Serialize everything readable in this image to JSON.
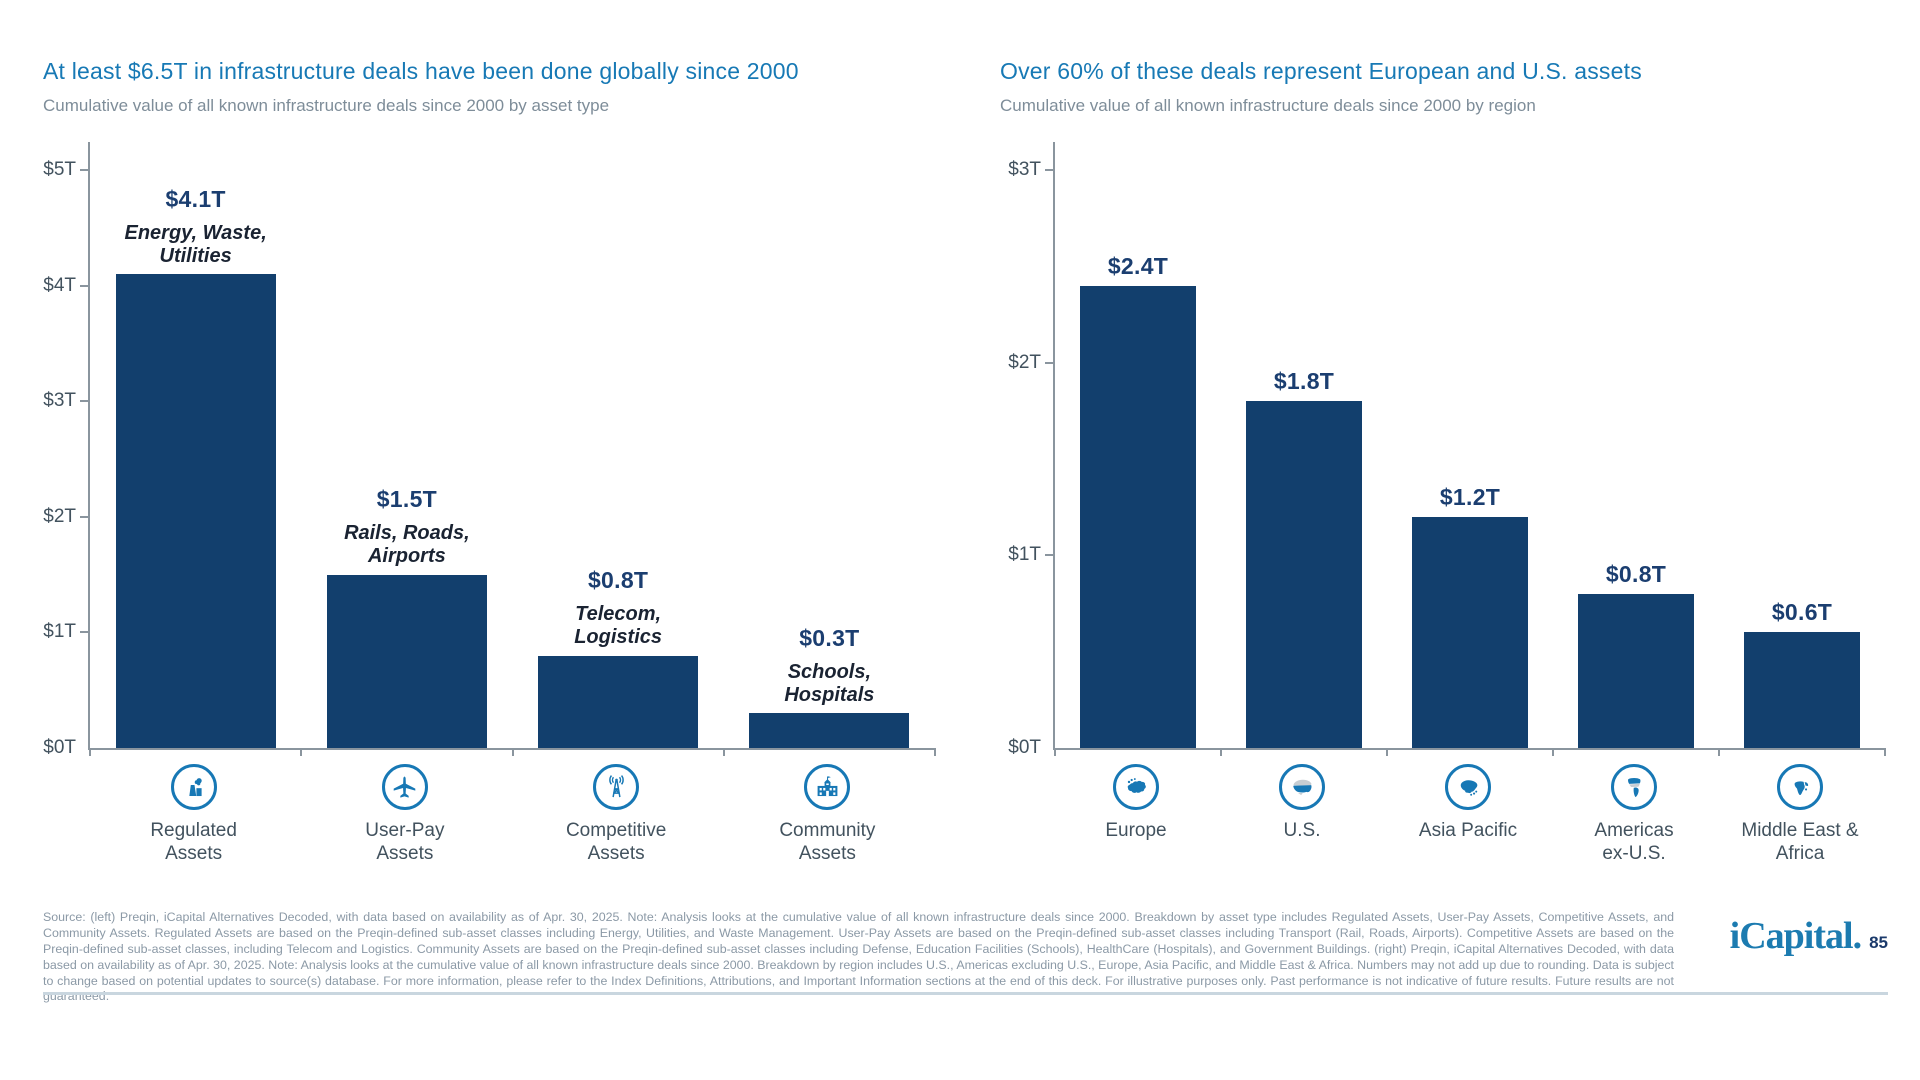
{
  "page": {
    "footer_text": "Source: (left) Preqin, iCapital Alternatives Decoded, with data based on availability as of Apr. 30, 2025. Note: Analysis looks at the cumulative value of all known infrastructure deals since 2000. Breakdown by asset type includes Regulated Assets, User-Pay Assets, Competitive Assets, and Community Assets. Regulated Assets are based on the Preqin-defined sub-asset classes including Energy, Utilities, and Waste Management. User-Pay Assets are based on the Preqin-defined sub-asset classes including Transport (Rail, Roads, Airports). Competitive Assets are based on the Preqin-defined sub-asset classes, including Telecom and Logistics. Community Assets are based on the Preqin-defined sub-asset classes including Defense, Education Facilities (Schools), HealthCare (Hospitals), and Government Buildings. (right) Preqin, iCapital Alternatives Decoded, with data based on availability as of Apr. 30, 2025. Note: Analysis looks at the cumulative value of all known infrastructure deals since 2000. Breakdown by region includes U.S., Americas excluding U.S., Europe, Asia Pacific, and Middle East & Africa. Numbers may not add up due to rounding. Data is subject to change based on potential updates to source(s) database. For more information, please refer to the Index Definitions, Attributions, and Important Information sections at the end of this deck. For illustrative purposes only. Past performance is not indicative of future results. Future results are not guaranteed.",
    "logo_text": "iCapital",
    "logo_dot": ".",
    "page_number": "85"
  },
  "colors": {
    "bar": "#123F6D",
    "title": "#1779B5",
    "value_label": "#1B3E70",
    "description": "#1A2332",
    "axis_text": "#42525E",
    "subtitle": "#7E8D99",
    "footer_text": "#8B99A6",
    "axis_line": "#8A959E",
    "icon": "#1778B5",
    "logo": "#1C7BB0",
    "page_number": "#1B3A6B",
    "divider": "#C9D6DF"
  },
  "chart_data": [
    {
      "type": "bar",
      "title": "At least $6.5T in infrastructure deals have been done globally since 2000",
      "subtitle": "Cumulative value of all known infrastructure deals since 2000 by asset type",
      "categories": [
        "Regulated Assets",
        "User-Pay Assets",
        "Competitive Assets",
        "Community Assets"
      ],
      "category_label_lines": [
        [
          "Regulated",
          "Assets"
        ],
        [
          "User-Pay",
          "Assets"
        ],
        [
          "Competitive",
          "Assets"
        ],
        [
          "Community",
          "Assets"
        ]
      ],
      "values": [
        4.1,
        1.5,
        0.8,
        0.3
      ],
      "value_labels": [
        "$4.1T",
        "$1.5T",
        "$0.8T",
        "$0.3T"
      ],
      "descriptions": [
        [
          "Energy, Waste,",
          "Utilities"
        ],
        [
          "Rails, Roads,",
          "Airports"
        ],
        [
          "Telecom,",
          "Logistics"
        ],
        [
          "Schools,",
          "Hospitals"
        ]
      ],
      "icons": [
        "power-plant",
        "airplane",
        "antenna-tower",
        "school-building"
      ],
      "yticks": [
        "$5T",
        "$4T",
        "$3T",
        "$2T",
        "$1T",
        "$0T"
      ],
      "ylim": [
        0,
        5
      ],
      "unit": "USD trillions",
      "grid": false,
      "legend": false
    },
    {
      "type": "bar",
      "title": "Over 60% of these deals represent European and U.S. assets",
      "subtitle": "Cumulative value of all known infrastructure deals since 2000 by region",
      "categories": [
        "Europe",
        "U.S.",
        "Asia Pacific",
        "Americas ex-U.S.",
        "Middle East & Africa"
      ],
      "category_label_lines": [
        [
          "Europe"
        ],
        [
          "U.S."
        ],
        [
          "Asia Pacific"
        ],
        [
          "Americas",
          "ex-U.S."
        ],
        [
          "Middle East &",
          "Africa"
        ]
      ],
      "values": [
        2.4,
        1.8,
        1.2,
        0.8,
        0.6
      ],
      "value_labels": [
        "$2.4T",
        "$1.8T",
        "$1.2T",
        "$0.8T",
        "$0.6T"
      ],
      "icons": [
        "europe-map",
        "us-map",
        "asia-pacific-map",
        "americas-map",
        "middle-east-africa-map"
      ],
      "yticks": [
        "$3T",
        "$2T",
        "$1T",
        "$0T"
      ],
      "ylim": [
        0,
        3
      ],
      "unit": "USD trillions",
      "grid": false,
      "legend": false
    }
  ]
}
